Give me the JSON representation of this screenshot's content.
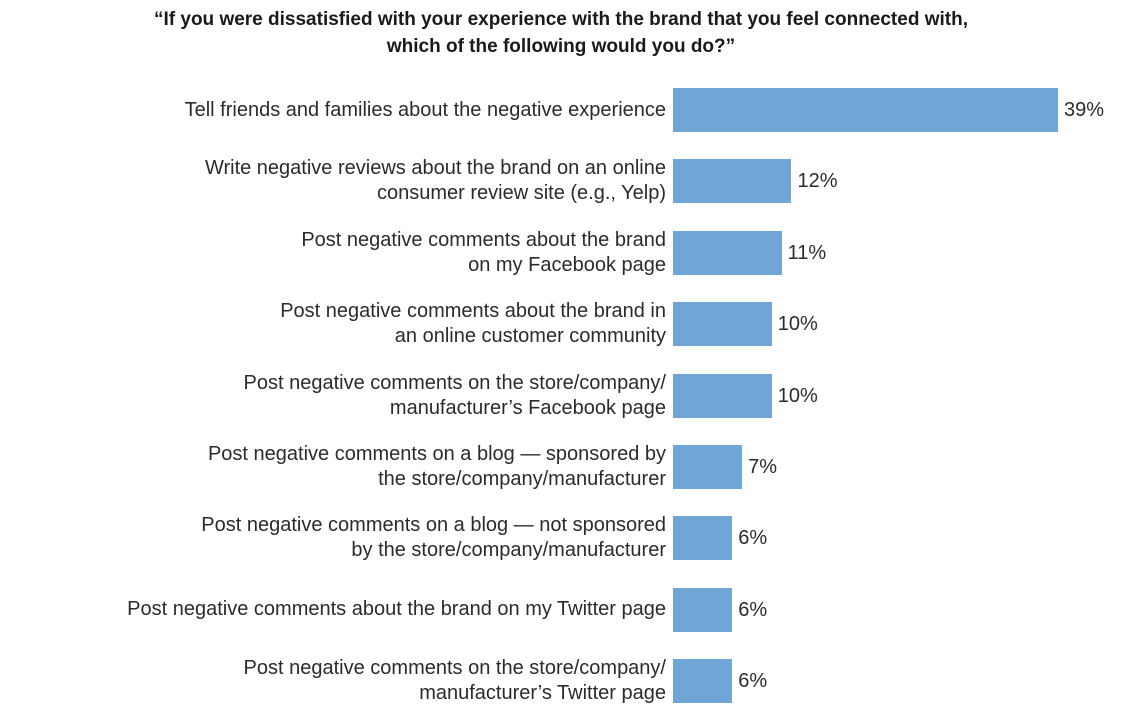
{
  "chart_data": {
    "type": "bar",
    "orientation": "horizontal",
    "title": "“If you were dissatisfied with your experience with the brand that you feel connected with, which of the following would you do?”",
    "title_lines": [
      "“If you were dissatisfied with your experience with the brand that you feel connected with,",
      "which of the following would you do?”"
    ],
    "categories": [
      [
        "Tell friends and families about the negative experience"
      ],
      [
        "Write negative reviews about the brand on an online",
        "consumer review site (e.g., Yelp)"
      ],
      [
        "Post negative comments about the brand",
        "on my Facebook page"
      ],
      [
        "Post negative comments about the brand in",
        "an online customer community"
      ],
      [
        "Post negative comments on the store/company/",
        "manufacturer’s Facebook page"
      ],
      [
        "Post negative comments on a blog — sponsored by",
        "the store/company/manufacturer"
      ],
      [
        "Post negative comments on a blog — not sponsored",
        "by the store/company/manufacturer"
      ],
      [
        "Post negative comments about the brand on my Twitter page"
      ],
      [
        "Post negative comments on the store/company/",
        "manufacturer’s Twitter page"
      ]
    ],
    "values": [
      39,
      12,
      11,
      10,
      10,
      7,
      6,
      6,
      6
    ],
    "value_labels": [
      "39%",
      "12%",
      "11%",
      "10%",
      "10%",
      "7%",
      "6%",
      "6%",
      "6%"
    ],
    "bar_color": "#6fa6d6",
    "xlim": [
      0,
      39
    ],
    "grid": false,
    "legend": "none"
  }
}
